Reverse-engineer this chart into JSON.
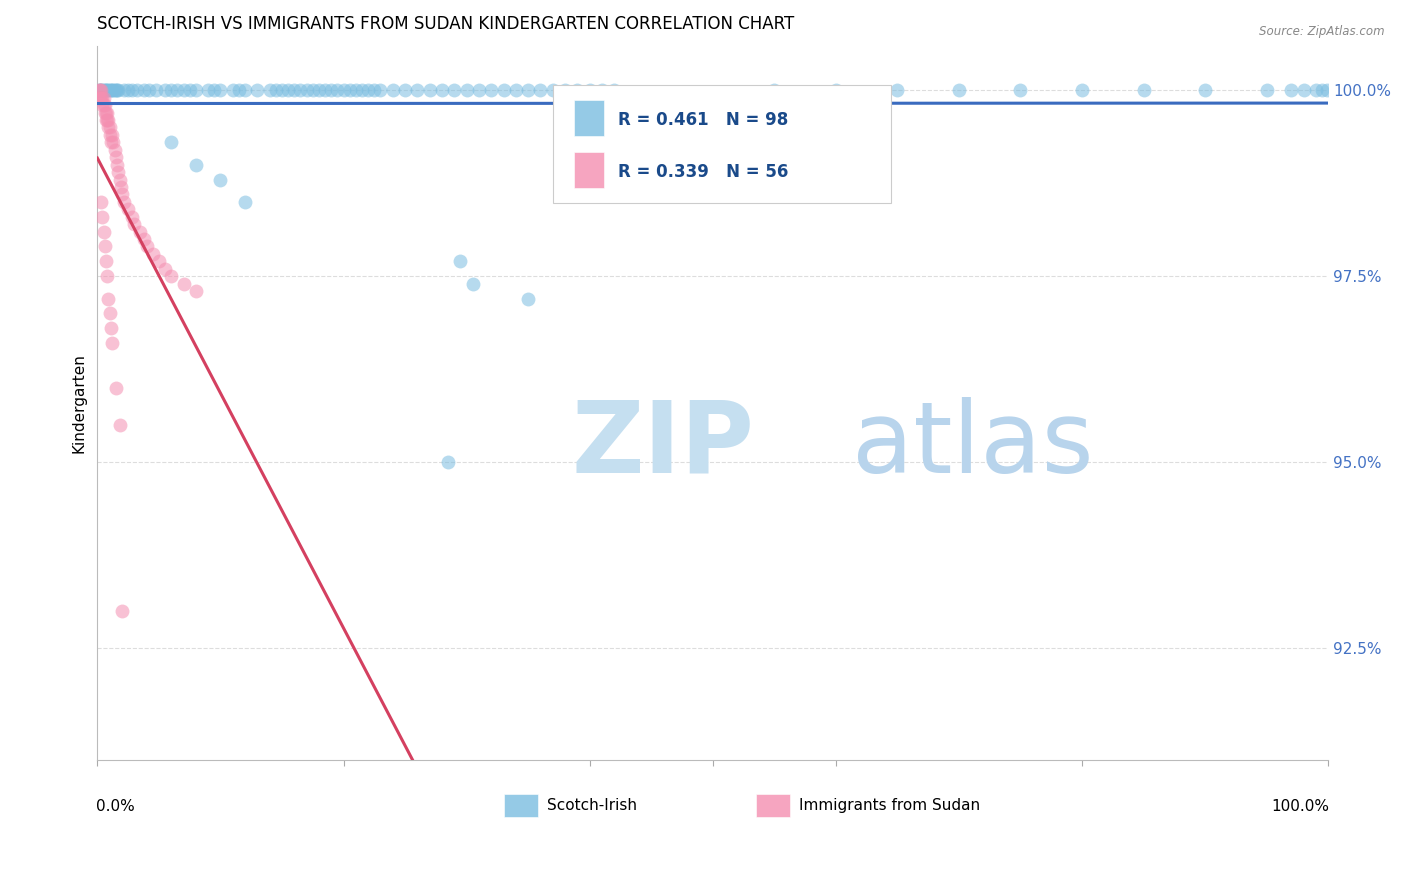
{
  "title": "SCOTCH-IRISH VS IMMIGRANTS FROM SUDAN KINDERGARTEN CORRELATION CHART",
  "source": "Source: ZipAtlas.com",
  "ylabel": "Kindergarten",
  "R_blue": 0.461,
  "N_blue": 98,
  "R_pink": 0.339,
  "N_pink": 56,
  "blue_color": "#7bbde0",
  "pink_color": "#f48fb1",
  "trend_blue": "#3a6bbf",
  "trend_pink": "#d44060",
  "watermark_zip_color": "#c5dff0",
  "watermark_atlas_color": "#b8d4ec",
  "background": "#ffffff",
  "grid_color": "#dddddd",
  "ytick_color": "#4472c4",
  "xlim": [
    0.0,
    1.0
  ],
  "ylim": [
    0.91,
    1.006
  ],
  "yticks": [
    1.0,
    0.975,
    0.95,
    0.925
  ],
  "ytick_labels": [
    "100.0%",
    "97.5%",
    "95.0%",
    "92.5%"
  ]
}
